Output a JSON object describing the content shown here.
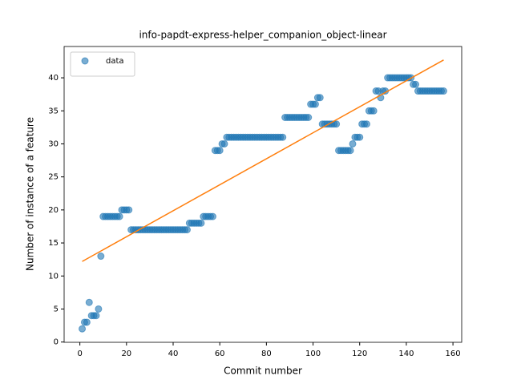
{
  "chart_data": {
    "type": "scatter",
    "title": "info-papdt-express-helper_companion_object-linear",
    "x_label": "Commit number",
    "y_label": "Number of instance of a feature",
    "xlim": [
      -6.75,
      163.75
    ],
    "ylim": [
      -0.04,
      44.74
    ],
    "xticks": [
      0,
      20,
      40,
      60,
      80,
      100,
      120,
      140,
      160
    ],
    "yticks": [
      0,
      5,
      10,
      15,
      20,
      25,
      30,
      35,
      40
    ],
    "legend": "upper left",
    "series": [
      {
        "name": "data",
        "type": "scatter",
        "color": "#1f77b4",
        "x": [
          1,
          2,
          3,
          4,
          5,
          6,
          7,
          8,
          9,
          10,
          11,
          12,
          13,
          14,
          15,
          16,
          17,
          18,
          19,
          20,
          21,
          22,
          23,
          24,
          25,
          26,
          27,
          28,
          29,
          30,
          31,
          32,
          33,
          34,
          35,
          36,
          37,
          38,
          39,
          40,
          41,
          42,
          43,
          44,
          45,
          46,
          47,
          48,
          49,
          50,
          51,
          52,
          53,
          54,
          55,
          56,
          57,
          58,
          59,
          60,
          61,
          62,
          63,
          64,
          65,
          66,
          67,
          68,
          69,
          70,
          71,
          72,
          73,
          74,
          75,
          76,
          77,
          78,
          79,
          80,
          81,
          82,
          83,
          84,
          85,
          86,
          87,
          88,
          89,
          90,
          91,
          92,
          93,
          94,
          95,
          96,
          97,
          98,
          99,
          100,
          101,
          102,
          103,
          104,
          105,
          106,
          107,
          108,
          109,
          110,
          111,
          112,
          113,
          114,
          115,
          116,
          117,
          118,
          119,
          120,
          121,
          122,
          123,
          124,
          125,
          126,
          127,
          128,
          129,
          130,
          131,
          132,
          133,
          134,
          135,
          136,
          137,
          138,
          139,
          140,
          141,
          142,
          143,
          144,
          145,
          146,
          147,
          148,
          149,
          150,
          151,
          152,
          153,
          154,
          155,
          156
        ],
        "values": [
          2,
          3,
          3,
          6,
          4,
          4,
          4,
          5,
          13,
          19,
          19,
          19,
          19,
          19,
          19,
          19,
          19,
          20,
          20,
          20,
          20,
          17,
          17,
          17,
          17,
          17,
          17,
          17,
          17,
          17,
          17,
          17,
          17,
          17,
          17,
          17,
          17,
          17,
          17,
          17,
          17,
          17,
          17,
          17,
          17,
          17,
          18,
          18,
          18,
          18,
          18,
          18,
          19,
          19,
          19,
          19,
          19,
          29,
          29,
          29,
          30,
          30,
          31,
          31,
          31,
          31,
          31,
          31,
          31,
          31,
          31,
          31,
          31,
          31,
          31,
          31,
          31,
          31,
          31,
          31,
          31,
          31,
          31,
          31,
          31,
          31,
          31,
          34,
          34,
          34,
          34,
          34,
          34,
          34,
          34,
          34,
          34,
          34,
          36,
          36,
          36,
          37,
          37,
          33,
          33,
          33,
          33,
          33,
          33,
          33,
          29,
          29,
          29,
          29,
          29,
          29,
          30,
          31,
          31,
          31,
          33,
          33,
          33,
          35,
          35,
          35,
          38,
          38,
          37,
          38,
          38,
          40,
          40,
          40,
          40,
          40,
          40,
          40,
          40,
          40,
          40,
          40,
          39,
          39,
          38,
          38,
          38,
          38,
          38,
          38,
          38,
          38,
          38,
          38,
          38,
          38
        ]
      },
      {
        "type": "line",
        "color": "#ff7f0e",
        "x": [
          1,
          156
        ],
        "values": [
          12.2,
          42.7
        ]
      }
    ]
  }
}
